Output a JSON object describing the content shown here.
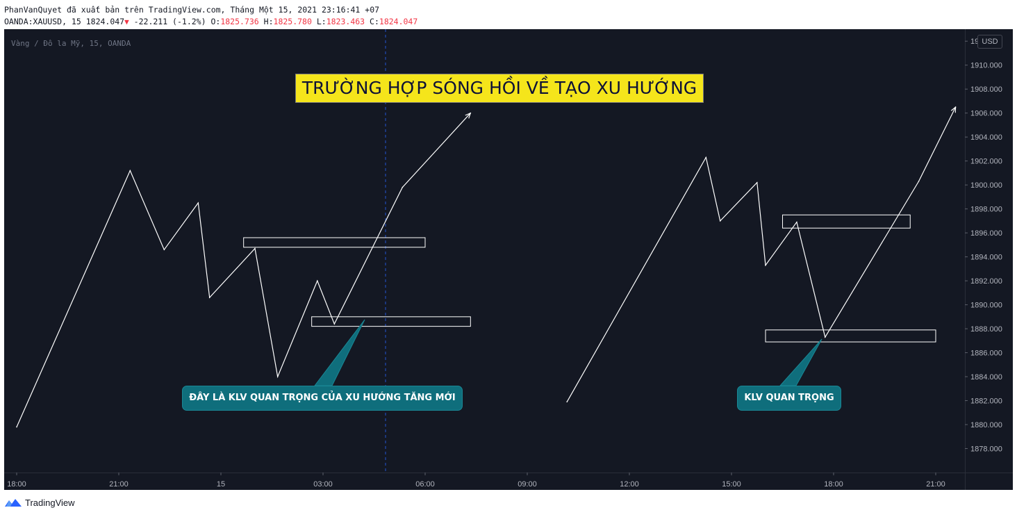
{
  "header": {
    "published_line": "PhanVanQuyet đã xuất bản trên TradingView.com, Tháng Một 15, 2021 23:16:41 +07",
    "symbol": "OANDA:XAUUSD, 15",
    "last_price": "1824.047",
    "change_icon": "triangle-down-icon",
    "change": "-22.211 (-1.2%)",
    "o_label": "O:",
    "o_value": "1825.736",
    "h_label": "H:",
    "h_value": "1825.780",
    "l_label": "L:",
    "l_value": "1823.463",
    "c_label": "C:",
    "c_value": "1824.047"
  },
  "chart": {
    "watermark": "Vàng / Đô la Mỹ, 15, OANDA",
    "currency": "USD",
    "title_box": "TRƯỜNG HỢP SÓNG HỒI VỀ TẠO XU HƯỚNG",
    "callout_left": "ĐÂY LÀ KLV QUAN TRỌNG CỦA XU HƯỚNG TĂNG MỚI",
    "callout_right": "KLV QUAN TRỌNG",
    "colors": {
      "background": "#141823",
      "line": "#ffffff",
      "title_bg": "#f5e51b",
      "callout_bg": "#0f6e7c",
      "price_red": "#f23645",
      "crosshair": "#2962ff"
    }
  },
  "chart_data": {
    "type": "line",
    "x_ticks": [
      "18:00",
      "21:00",
      "15",
      "03:00",
      "06:00",
      "09:00",
      "12:00",
      "15:00",
      "18:00",
      "21:00"
    ],
    "y_ticks": [
      "1878.000",
      "1880.000",
      "1882.000",
      "1884.000",
      "1886.000",
      "1888.000",
      "1890.000",
      "1892.000",
      "1894.000",
      "1896.000",
      "1898.000",
      "1900.000",
      "1902.000",
      "1904.000",
      "1906.000",
      "1908.000",
      "1910.000",
      "1912.000"
    ],
    "ylim": [
      1876,
      1913
    ],
    "crosshair_time": "06:00",
    "series": [
      {
        "x": [
          "18:00",
          "21:20",
          "22:20",
          "23:20",
          "23:40",
          "01:00",
          "01:40",
          "02:50",
          "03:20",
          "05:20",
          "07:20"
        ],
        "y": [
          1879.8,
          1901.2,
          1894.6,
          1898.5,
          1890.6,
          1894.7,
          1884.0,
          1892.0,
          1888.4,
          1899.8,
          1906.0
        ]
      },
      {
        "x": [
          "10:10",
          "14:15",
          "14:40",
          "15:45",
          "16:00",
          "16:55",
          "17:45",
          "20:30",
          "21:35"
        ],
        "y": [
          1881.9,
          1902.3,
          1897.0,
          1900.2,
          1893.3,
          1896.9,
          1887.3,
          1900.3,
          1906.5
        ]
      }
    ],
    "zones": [
      {
        "x_start": "00:40",
        "x_end": "06:00",
        "y_low": 1894.8,
        "y_high": 1895.6
      },
      {
        "x_start": "02:40",
        "x_end": "07:20",
        "y_low": 1888.2,
        "y_high": 1889.0
      },
      {
        "x_start": "16:30",
        "x_end": "20:15",
        "y_low": 1896.4,
        "y_high": 1897.5
      },
      {
        "x_start": "16:00",
        "x_end": "21:00",
        "y_low": 1886.9,
        "y_high": 1887.9
      }
    ]
  },
  "footer": {
    "brand": "TradingView",
    "logo_icon": "tradingview-logo-icon"
  }
}
